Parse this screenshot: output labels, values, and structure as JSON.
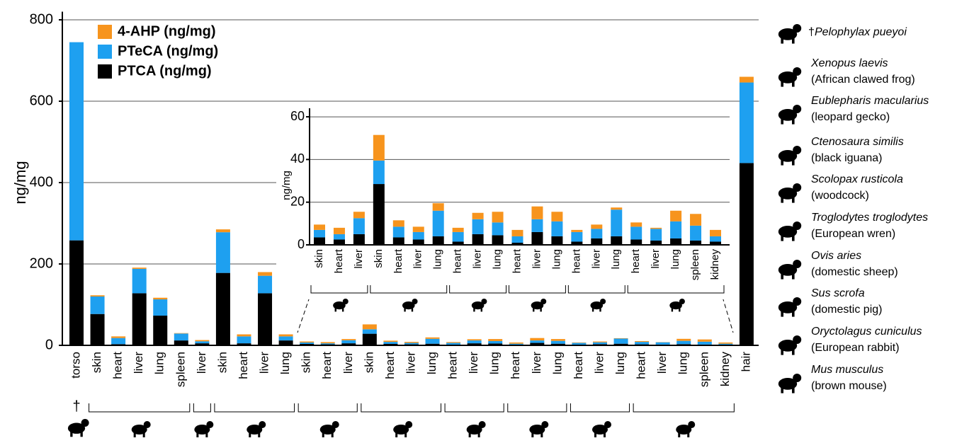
{
  "chart_data": [
    {
      "type": "stacked_bar",
      "y_label": "ng/mg",
      "categories": [
        "torso",
        "skin",
        "heart",
        "liver",
        "lung",
        "spleen",
        "liver",
        "skin",
        "heart",
        "liver",
        "lung",
        "skin",
        "heart",
        "liver",
        "skin",
        "heart",
        "liver",
        "lung",
        "heart",
        "liver",
        "lung",
        "heart",
        "liver",
        "lung",
        "heart",
        "liver",
        "lung",
        "heart",
        "liver",
        "lung",
        "spleen",
        "kidney",
        "hair"
      ],
      "series": [
        {
          "name": "PTCA (ng/mg)",
          "color": "#000000",
          "values": [
            258,
            77,
            3,
            128,
            73,
            12,
            5,
            178,
            5,
            128,
            12,
            3.5,
            2.5,
            5,
            28.5,
            3.5,
            2.5,
            4,
            1.5,
            5,
            4.5,
            1,
            6,
            4,
            1.5,
            3,
            4,
            2.5,
            2,
            3,
            2,
            1.5,
            448
          ]
        },
        {
          "name": "PTeCA (ng/mg)",
          "color": "#1ea0f0",
          "values": [
            487,
            43,
            15,
            60,
            40,
            17,
            5,
            100,
            17,
            43,
            10,
            3.5,
            2.5,
            7.5,
            11,
            5,
            3.5,
            12,
            4.5,
            7,
            6,
            3,
            6,
            7,
            4.5,
            4.5,
            12.5,
            6,
            5.5,
            8,
            7,
            2.5,
            198
          ]
        },
        {
          "name": "4-AHP (ng/mg)",
          "color": "#f7941d",
          "values": [
            0,
            3,
            4,
            3,
            4,
            1,
            3,
            7,
            5,
            9,
            5,
            2.5,
            3,
            3,
            12,
            3,
            2.5,
            3.5,
            2,
            3,
            5,
            3,
            6,
            4.5,
            1,
            2,
            1,
            2,
            0.5,
            5,
            5.5,
            3,
            14
          ]
        }
      ],
      "ylim": [
        0,
        820
      ],
      "yticks": [
        0,
        200,
        400,
        600,
        800
      ],
      "grid": true,
      "legend": "top-left"
    },
    {
      "type": "stacked_bar",
      "y_label": "ng/mg",
      "categories": [
        "skin",
        "heart",
        "liver",
        "skin",
        "heart",
        "liver",
        "lung",
        "heart",
        "liver",
        "lung",
        "heart",
        "liver",
        "lung",
        "heart",
        "liver",
        "lung",
        "heart",
        "liver",
        "lung",
        "spleen",
        "kidney"
      ],
      "series": [
        {
          "color": "#000000",
          "values": [
            3.5,
            2.5,
            5,
            28.5,
            3.5,
            2.5,
            4,
            1.5,
            5,
            4.5,
            1,
            6,
            4,
            1.5,
            3,
            4,
            2.5,
            2,
            3,
            2,
            1.5
          ]
        },
        {
          "color": "#1ea0f0",
          "values": [
            3.5,
            2.5,
            7.5,
            11,
            5,
            3.5,
            12,
            4.5,
            7,
            6,
            3,
            6,
            7,
            4.5,
            4.5,
            12.5,
            6,
            5.5,
            8,
            7,
            2.5
          ]
        },
        {
          "color": "#f7941d",
          "values": [
            2.5,
            3,
            3,
            12,
            3,
            2.5,
            3.5,
            2,
            3,
            5,
            3,
            6,
            4.5,
            1,
            2,
            1,
            2,
            0.5,
            5,
            5.5,
            3
          ]
        }
      ],
      "ylim": [
        0,
        64
      ],
      "yticks": [
        0,
        20,
        40,
        60
      ],
      "grid": true
    }
  ],
  "dagger": "†",
  "species": [
    {
      "latin": "Pelophylax pueyoi"
    },
    {
      "latin": "Xenopus laevis",
      "common": "(African clawed frog)"
    },
    {
      "latin": "Eublepharis macularius",
      "common": "(leopard gecko)"
    },
    {
      "latin": "Ctenosaura similis",
      "common": "(black iguana)"
    },
    {
      "latin": "Scolopax rusticola",
      "common": "(woodcock)"
    },
    {
      "latin": "Troglodytes troglodytes",
      "common": "(European wren)"
    },
    {
      "latin": "Ovis aries",
      "common": "(domestic sheep)"
    },
    {
      "latin": "Sus scrofa",
      "common": "(domestic pig)"
    },
    {
      "latin": "Oryctolagus cuniculus",
      "common": "(European rabbit)"
    },
    {
      "latin": "Mus musculus",
      "common": "(brown mouse)"
    }
  ]
}
